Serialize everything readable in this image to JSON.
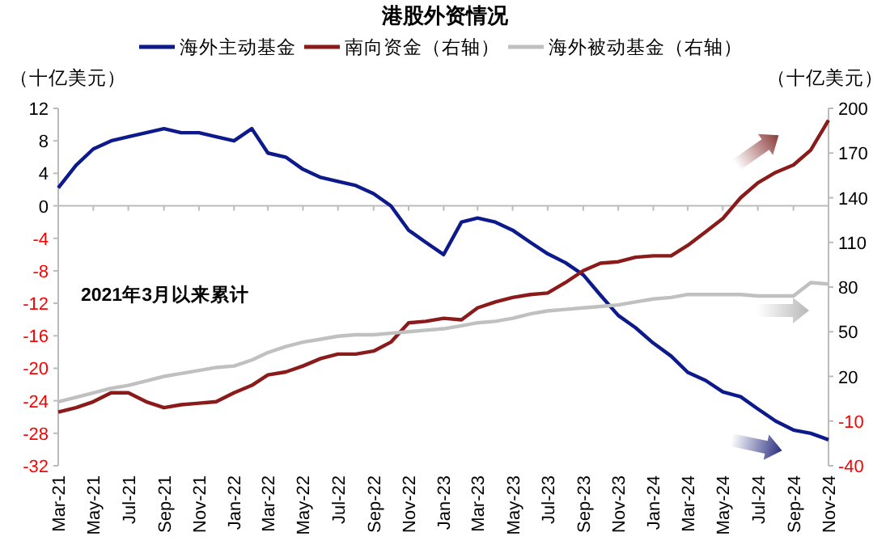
{
  "chart_data": {
    "type": "line",
    "title": "港股外资情况",
    "ylabel": "（十亿美元）",
    "y2label": "（十亿美元）",
    "legend": "top",
    "annotations": [
      "2021年3月以来累计"
    ],
    "x": [
      "2021-03",
      "2021-04",
      "2021-05",
      "2021-06",
      "2021-07",
      "2021-08",
      "2021-09",
      "2021-10",
      "2021-11",
      "2021-12",
      "2022-01",
      "2022-02",
      "2022-03",
      "2022-04",
      "2022-05",
      "2022-06",
      "2022-07",
      "2022-08",
      "2022-09",
      "2022-10",
      "2022-11",
      "2022-12",
      "2023-01",
      "2023-02",
      "2023-03",
      "2023-04",
      "2023-05",
      "2023-06",
      "2023-07",
      "2023-08",
      "2023-09",
      "2023-10",
      "2023-11",
      "2023-12",
      "2024-01",
      "2024-02",
      "2024-03",
      "2024-04",
      "2024-05",
      "2024-06",
      "2024-07",
      "2024-08",
      "2024-09",
      "2024-10",
      "2024-11"
    ],
    "series": [
      {
        "name": "海外主动基金",
        "color": "#0d1a8c",
        "values": [
          2.2,
          5,
          7,
          8,
          8.5,
          9,
          9.5,
          9,
          9,
          8.5,
          8,
          9.5,
          6.5,
          6,
          4.5,
          3.5,
          3,
          2.5,
          1.5,
          0,
          -3,
          -4.5,
          -6,
          -2,
          -1.5,
          -2,
          -3,
          -4.5,
          -5.9,
          -7,
          -8.5,
          -11,
          -13.5,
          -15,
          -16.9,
          -18.5,
          -20.5,
          -21.5,
          -22.9,
          -23.5,
          -25,
          -26.5,
          -27.6,
          -28,
          -28.8
        ]
      },
      {
        "name": "南向资金（右轴）",
        "color": "#8b1a1a",
        "axis": "y2",
        "values": [
          -4,
          -1,
          3,
          9,
          9,
          3,
          -1,
          1,
          2,
          3,
          9,
          14,
          21,
          23,
          27,
          32,
          35,
          35,
          37,
          43,
          56,
          57,
          59,
          58,
          66,
          70,
          73,
          75,
          76,
          83,
          91,
          96,
          97,
          100,
          101,
          101,
          108,
          117,
          126,
          140,
          150,
          157,
          162,
          172,
          192
        ]
      },
      {
        "name": "海外被动基金（右轴）",
        "color": "#c0c0c0",
        "axis": "y2",
        "values": [
          3,
          6,
          9,
          12,
          14,
          17,
          20,
          22,
          24,
          26,
          27,
          31,
          36,
          40,
          43,
          45,
          47,
          48,
          48,
          49,
          50,
          51,
          52,
          54,
          56,
          57,
          59,
          62,
          64,
          65,
          66,
          67,
          68,
          70,
          72,
          73,
          75,
          75,
          75,
          75,
          74,
          74,
          74,
          83,
          82
        ]
      }
    ],
    "ylim": [
      -32,
      12
    ],
    "yticks": [
      -32,
      -28,
      -24,
      -20,
      -16,
      -12,
      -8,
      -4,
      0,
      4,
      8,
      12
    ],
    "y2lim": [
      -40,
      200
    ],
    "y2ticks": [
      -40,
      -10,
      20,
      50,
      80,
      110,
      140,
      170,
      200
    ],
    "xlim": [
      "2021-03",
      "2024-11"
    ],
    "xticks": [
      {
        "value": "2021-03",
        "label": "Mar-21"
      },
      {
        "value": "2021-05",
        "label": "May-21"
      },
      {
        "value": "2021-07",
        "label": "Jul-21"
      },
      {
        "value": "2021-09",
        "label": "Sep-21"
      },
      {
        "value": "2021-11",
        "label": "Nov-21"
      },
      {
        "value": "2022-01",
        "label": "Jan-22"
      },
      {
        "value": "2022-03",
        "label": "Mar-22"
      },
      {
        "value": "2022-05",
        "label": "May-22"
      },
      {
        "value": "2022-07",
        "label": "Jul-22"
      },
      {
        "value": "2022-09",
        "label": "Sep-22"
      },
      {
        "value": "2022-11",
        "label": "Nov-22"
      },
      {
        "value": "2023-01",
        "label": "Jan-23"
      },
      {
        "value": "2023-03",
        "label": "Mar-23"
      },
      {
        "value": "2023-05",
        "label": "May-23"
      },
      {
        "value": "2023-07",
        "label": "Jul-23"
      },
      {
        "value": "2023-09",
        "label": "Sep-23"
      },
      {
        "value": "2023-11",
        "label": "Nov-23"
      },
      {
        "value": "2024-01",
        "label": "Jan-24"
      },
      {
        "value": "2024-03",
        "label": "Mar-24"
      },
      {
        "value": "2024-05",
        "label": "May-24"
      },
      {
        "value": "2024-07",
        "label": "Jul-24"
      },
      {
        "value": "2024-09",
        "label": "Sep-24"
      },
      {
        "value": "2024-11",
        "label": "Nov-24"
      }
    ]
  }
}
